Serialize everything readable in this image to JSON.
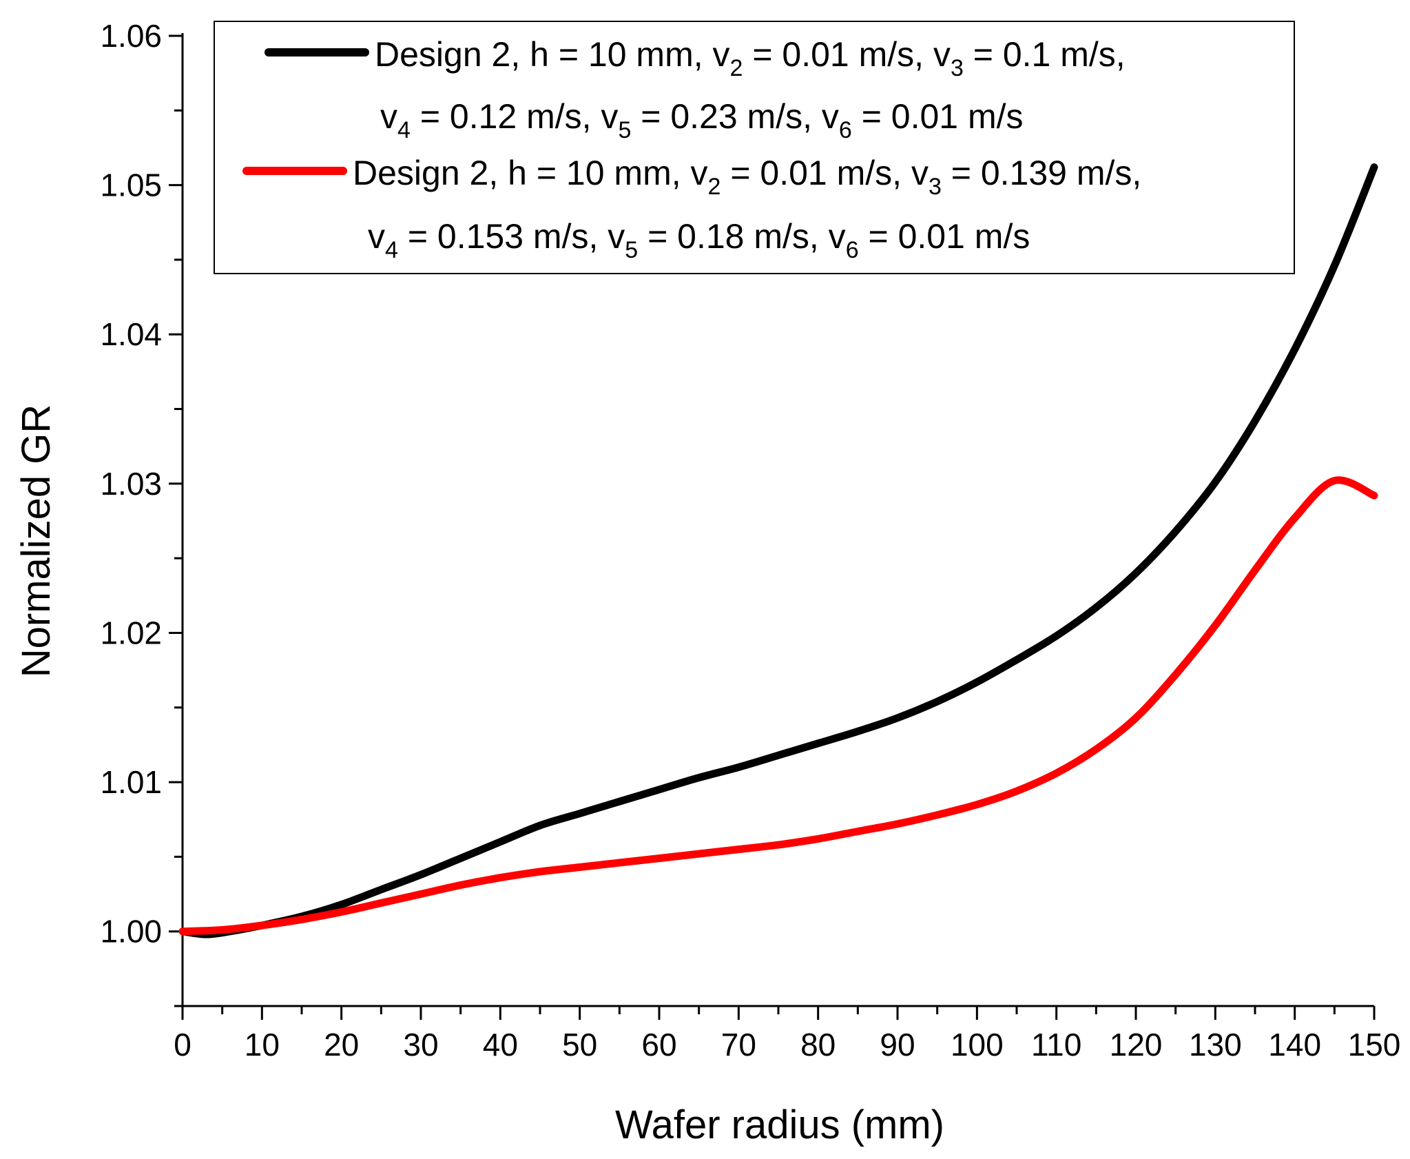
{
  "chart_data": {
    "type": "line",
    "title": "",
    "xlabel": "Wafer radius (mm)",
    "ylabel": "Normalized GR",
    "xlim": [
      0,
      150
    ],
    "ylim": [
      0.995,
      1.06
    ],
    "xticks": [
      0,
      10,
      20,
      30,
      40,
      50,
      60,
      70,
      80,
      90,
      100,
      110,
      120,
      130,
      140,
      150
    ],
    "xtick_labels": [
      "0",
      "10",
      "20",
      "30",
      "40",
      "50",
      "60",
      "70",
      "80",
      "90",
      "100",
      "110",
      "120",
      "130",
      "140",
      "150"
    ],
    "yticks": [
      1.0,
      1.01,
      1.02,
      1.03,
      1.04,
      1.05,
      1.06
    ],
    "ytick_labels": [
      "1.00",
      "1.01",
      "1.02",
      "1.03",
      "1.04",
      "1.05",
      "1.06"
    ],
    "legend_position": "top-right",
    "grid": false,
    "series": [
      {
        "name": "Design 2, h = 10 mm, v2 = 0.01 m/s, v3 = 0.1 m/s, v4 = 0.12 m/s, v5 = 0.23 m/s, v6 = 0.01 m/s",
        "color": "#000000",
        "legend_line1": {
          "pre": "Design 2, h = 10 mm, v",
          "s1": "2",
          "m1": " = 0.01 m/s, v",
          "s2": "3",
          "m2": " = 0.1 m/s,"
        },
        "legend_line2": {
          "pre": "v",
          "s1": "4",
          "m1": " = 0.12 m/s, v",
          "s2": "5",
          "m2": " = 0.23 m/s, v",
          "s3": "6",
          "m3": " = 0.01 m/s"
        },
        "x": [
          0,
          3,
          6,
          10,
          15,
          20,
          25,
          30,
          35,
          40,
          45,
          50,
          55,
          60,
          65,
          70,
          75,
          80,
          85,
          90,
          95,
          100,
          105,
          110,
          115,
          120,
          125,
          130,
          135,
          140,
          145,
          150
        ],
        "y": [
          1.0,
          0.9998,
          1.0,
          1.0004,
          1.001,
          1.0018,
          1.0028,
          1.0038,
          1.0049,
          1.006,
          1.0071,
          1.0079,
          1.0087,
          1.0095,
          1.0103,
          1.011,
          1.0118,
          1.0126,
          1.0134,
          1.0143,
          1.0154,
          1.0167,
          1.0182,
          1.0198,
          1.0217,
          1.024,
          1.0268,
          1.0301,
          1.0342,
          1.039,
          1.0446,
          1.0512
        ]
      },
      {
        "name": "Design 2, h = 10 mm, v2 = 0.01 m/s, v3 = 0.139 m/s, v4 = 0.153 m/s, v5 = 0.18 m/s, v6 = 0.01 m/s",
        "color": "#ff0000",
        "legend_line1": {
          "pre": "Design 2, h = 10 mm, v",
          "s1": "2",
          "m1": " = 0.01 m/s, v",
          "s2": "3",
          "m2": " = 0.139 m/s,"
        },
        "legend_line2": {
          "pre": "v",
          "s1": "4",
          "m1": " = 0.153 m/s, v",
          "s2": "5",
          "m2": " = 0.18 m/s, v",
          "s3": "6",
          "m3": " = 0.01 m/s"
        },
        "x": [
          0,
          5,
          10,
          15,
          20,
          25,
          30,
          35,
          40,
          45,
          50,
          55,
          60,
          65,
          70,
          75,
          80,
          85,
          90,
          95,
          100,
          105,
          110,
          115,
          120,
          125,
          130,
          135,
          140,
          145,
          150
        ],
        "y": [
          1.0,
          1.0001,
          1.0004,
          1.0008,
          1.0013,
          1.0019,
          1.0025,
          1.0031,
          1.0036,
          1.004,
          1.0043,
          1.0046,
          1.0049,
          1.0052,
          1.0055,
          1.0058,
          1.0062,
          1.0067,
          1.0072,
          1.0078,
          1.0085,
          1.0094,
          1.0106,
          1.0122,
          1.0143,
          1.0172,
          1.0205,
          1.0242,
          1.0277,
          1.0302,
          1.0292
        ]
      }
    ]
  }
}
